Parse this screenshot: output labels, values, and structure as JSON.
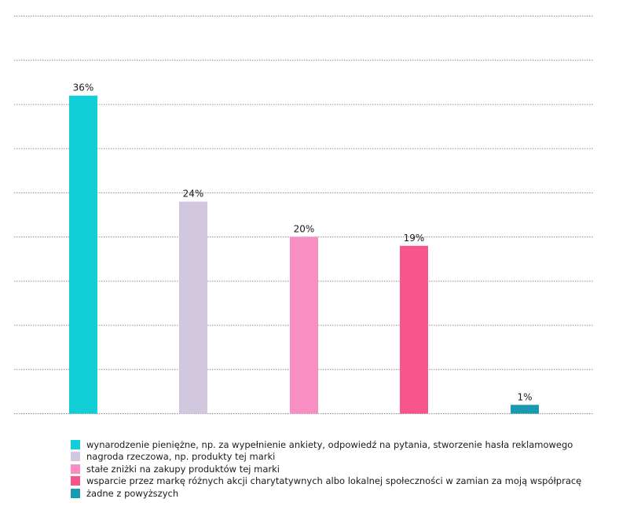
{
  "chart_data": {
    "type": "bar",
    "title": "",
    "xlabel": "",
    "ylabel": "",
    "ylim": [
      0,
      45
    ],
    "grid": true,
    "legend_position": "bottom",
    "categories": [
      "wynarodzenie pieniężne, np. za wypełnienie ankiety, odpowiedź na pytania, stworzenie hasła reklamowego",
      "nagroda rzeczowa, np. produkty tej marki",
      "stałe zniżki na zakupy produktów tej marki",
      "wsparcie przez markę różnych akcji charytatywnych albo lokalnej społeczności w zamian za moją współpracę",
      "żadne z powyższych"
    ],
    "values": [
      36,
      24,
      20,
      19,
      1
    ],
    "value_labels": [
      "36%",
      "24%",
      "20%",
      "19%",
      "1%"
    ],
    "colors": [
      "#12CED6",
      "#D1C7DF",
      "#F98EC3",
      "#F7558C",
      "#1A9AB0"
    ],
    "gridline_color": "#8c8c8c"
  }
}
